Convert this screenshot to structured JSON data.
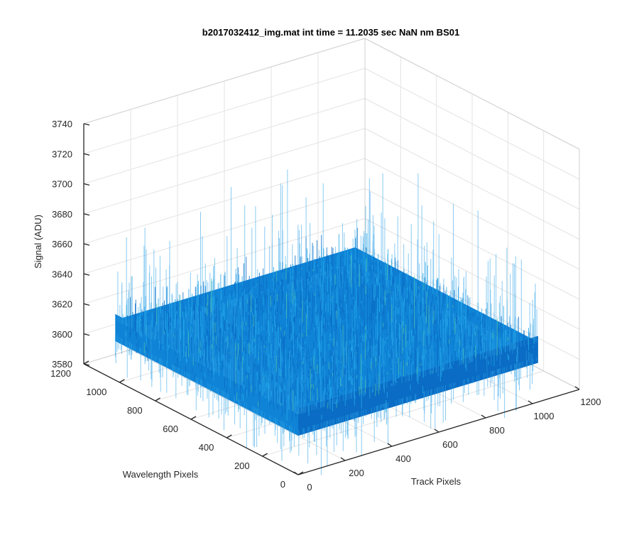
{
  "chart_data": {
    "type": "surface",
    "title": "b2017032412_img.mat int time = 11.2035 sec  NaN nm BS01",
    "xlabel": "Track Pixels",
    "ylabel": "Wavelength Pixels",
    "zlabel": "Signal (ADU)",
    "x_ticks": [
      "0",
      "200",
      "400",
      "600",
      "800",
      "1000",
      "1200"
    ],
    "y_ticks": [
      "0",
      "200",
      "400",
      "600",
      "800",
      "1000",
      "1200"
    ],
    "z_ticks": [
      "3580",
      "3600",
      "3620",
      "3640",
      "3660",
      "3680",
      "3700",
      "3720",
      "3740"
    ],
    "xlim": [
      0,
      1200
    ],
    "ylim": [
      0,
      1200
    ],
    "zlim": [
      3580,
      3740
    ],
    "data_extent": {
      "x": [
        0,
        1024
      ],
      "y": [
        0,
        1024
      ]
    },
    "surface": {
      "mean": 3620,
      "noise_typical": 8,
      "spike_min": 3585,
      "spike_max": 3690
    },
    "grid": true,
    "colormap": "parula",
    "colors": {
      "surface_main": "#0f83d6",
      "surface_light": "#22a7e8",
      "surface_dark": "#0a6cc4",
      "highlight": "#4fc0a8"
    }
  }
}
